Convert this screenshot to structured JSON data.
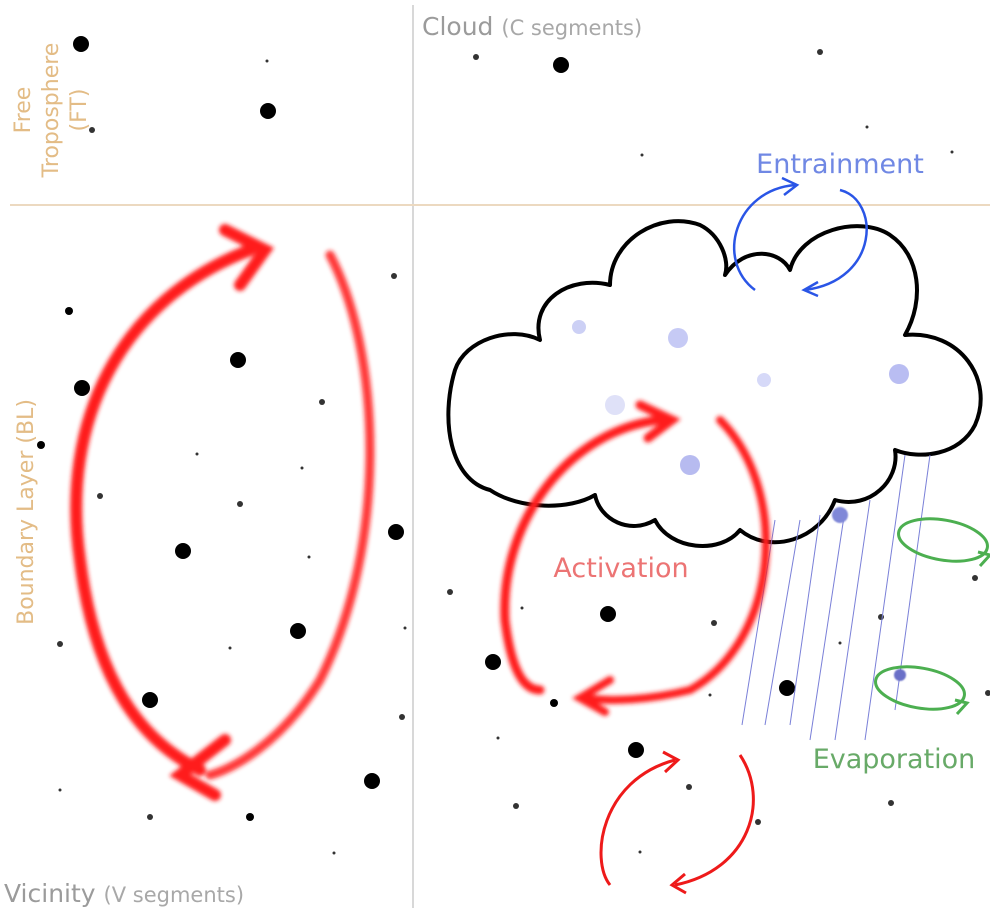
{
  "regions": {
    "cloud": {
      "name": "Cloud",
      "segments": "(C segments)"
    },
    "vicinity": {
      "name": "Vicinity",
      "segments": "(V segments)"
    },
    "free_troposphere": [
      "Free",
      "Troposphere",
      "(FT)"
    ],
    "boundary_layer": "Boundary Layer (BL)"
  },
  "processes": {
    "entrainment": "Entrainment",
    "activation": "Activation",
    "evaporation": "Evaporation"
  }
}
